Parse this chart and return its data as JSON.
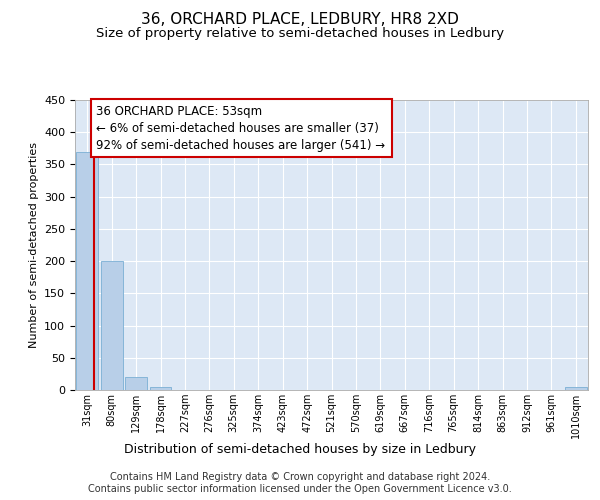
{
  "title": "36, ORCHARD PLACE, LEDBURY, HR8 2XD",
  "subtitle": "Size of property relative to semi-detached houses in Ledbury",
  "xlabel": "Distribution of semi-detached houses by size in Ledbury",
  "ylabel": "Number of semi-detached properties",
  "categories": [
    "31sqm",
    "80sqm",
    "129sqm",
    "178sqm",
    "227sqm",
    "276sqm",
    "325sqm",
    "374sqm",
    "423sqm",
    "472sqm",
    "521sqm",
    "570sqm",
    "619sqm",
    "667sqm",
    "716sqm",
    "765sqm",
    "814sqm",
    "863sqm",
    "912sqm",
    "961sqm",
    "1010sqm"
  ],
  "values": [
    370,
    200,
    20,
    5,
    0,
    0,
    0,
    0,
    0,
    0,
    0,
    0,
    0,
    0,
    0,
    0,
    0,
    0,
    0,
    0,
    5
  ],
  "bar_color": "#b8cfe8",
  "bar_edge_color": "#7aafd4",
  "annotation_text": "36 ORCHARD PLACE: 53sqm\n← 6% of semi-detached houses are smaller (37)\n92% of semi-detached houses are larger (541) →",
  "vline_color": "#cc0000",
  "annotation_box_color": "#cc0000",
  "background_color": "#dde8f5",
  "grid_color": "#ffffff",
  "ylim": [
    0,
    450
  ],
  "yticks": [
    0,
    50,
    100,
    150,
    200,
    250,
    300,
    350,
    400,
    450
  ],
  "footer": "Contains HM Land Registry data © Crown copyright and database right 2024.\nContains public sector information licensed under the Open Government Licence v3.0.",
  "title_fontsize": 11,
  "subtitle_fontsize": 9.5,
  "annotation_fontsize": 8.5,
  "footer_fontsize": 7,
  "xlabel_fontsize": 9,
  "ylabel_fontsize": 8
}
